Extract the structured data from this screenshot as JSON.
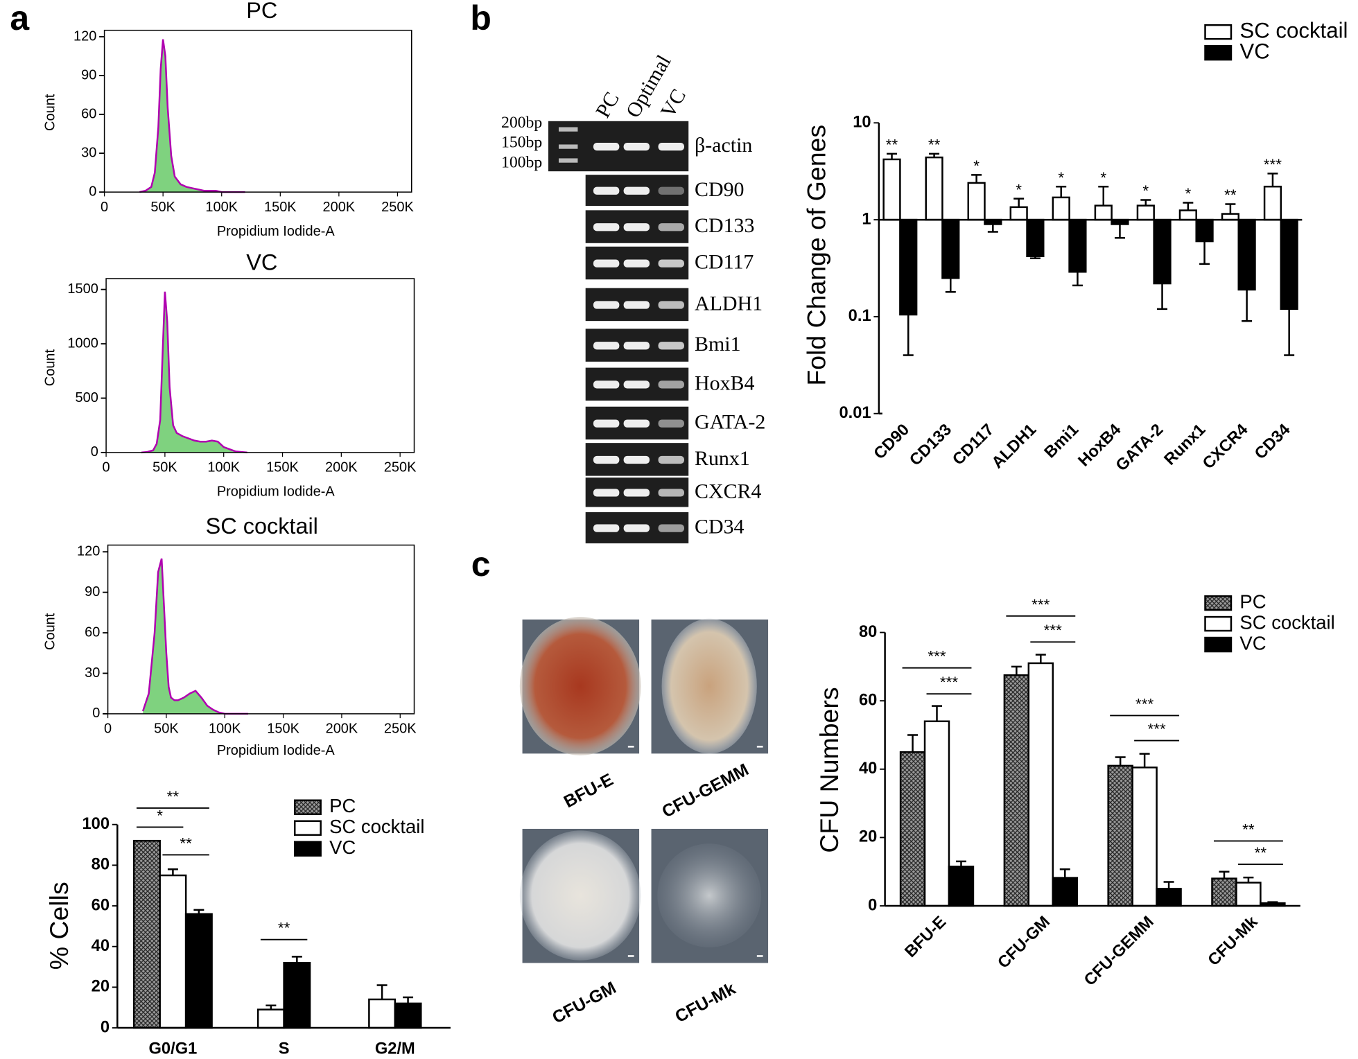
{
  "panel_labels": [
    "a",
    "b",
    "c"
  ],
  "gel": {
    "ladder": [
      "200bp",
      "150bp",
      "100bp"
    ],
    "lanes": [
      "PC",
      "Optimal",
      "VC"
    ],
    "genes": [
      "β-actin",
      "CD90",
      "CD133",
      "CD117",
      "ALDH1",
      "Bmi1",
      "HoxB4",
      "GATA-2",
      "Runx1",
      "CXCR4",
      "CD34"
    ]
  },
  "colonies": [
    "BFU-E",
    "CFU-GEMM",
    "CFU-GM",
    "CFU-Mk"
  ],
  "chart_data": [
    {
      "type": "area",
      "title": "PC",
      "xlabel": "Propidium Iodide-A",
      "ylabel": "Count",
      "color": "#7fd27f",
      "line_color": "#b000b0",
      "x": [
        30000,
        35000,
        40000,
        43000,
        46000,
        48000,
        50000,
        52000,
        54000,
        57000,
        60000,
        65000,
        70000,
        75000,
        80000,
        85000,
        90000,
        95000,
        100000,
        110000,
        120000
      ],
      "values": [
        0,
        1,
        4,
        15,
        50,
        95,
        118,
        105,
        65,
        28,
        12,
        6,
        4,
        3,
        2,
        1,
        1,
        1,
        0,
        0,
        0
      ],
      "xlim": [
        0,
        262000
      ],
      "xticks": [
        0,
        {
          "value": 50000,
          "label": "50K"
        },
        {
          "value": 100000,
          "label": "100K"
        },
        {
          "value": 150000,
          "label": "150K"
        },
        {
          "value": 200000,
          "label": "200K"
        },
        {
          "value": 250000,
          "label": "250K"
        }
      ],
      "ylim": [
        0,
        125
      ],
      "yticks": [
        0,
        30,
        60,
        90,
        120
      ]
    },
    {
      "type": "area",
      "title": "VC",
      "xlabel": "Propidium Iodide-A",
      "ylabel": "Count",
      "color": "#7fd27f",
      "line_color": "#b000b0",
      "x": [
        30000,
        35000,
        40000,
        43000,
        46000,
        48000,
        50000,
        52000,
        54000,
        57000,
        60000,
        65000,
        70000,
        75000,
        80000,
        85000,
        90000,
        95000,
        100000,
        110000,
        120000
      ],
      "values": [
        0,
        5,
        20,
        80,
        300,
        900,
        1480,
        1200,
        600,
        250,
        180,
        150,
        130,
        110,
        100,
        100,
        110,
        100,
        50,
        10,
        0
      ],
      "xlim": [
        0,
        262000
      ],
      "xticks": [
        0,
        {
          "value": 50000,
          "label": "50K"
        },
        {
          "value": 100000,
          "label": "100K"
        },
        {
          "value": 150000,
          "label": "150K"
        },
        {
          "value": 200000,
          "label": "200K"
        },
        {
          "value": 250000,
          "label": "250K"
        }
      ],
      "ylim": [
        0,
        1600
      ],
      "yticks": [
        0,
        500,
        1000,
        1500
      ]
    },
    {
      "type": "area",
      "title": "SC cocktail",
      "xlabel": "Propidium Iodide-A",
      "ylabel": "Count",
      "color": "#7fd27f",
      "line_color": "#b000b0",
      "x": [
        30000,
        35000,
        40000,
        43000,
        46000,
        48000,
        50000,
        52000,
        54000,
        57000,
        60000,
        65000,
        70000,
        75000,
        80000,
        85000,
        90000,
        95000,
        100000,
        110000,
        120000
      ],
      "values": [
        2,
        15,
        60,
        105,
        115,
        80,
        45,
        20,
        12,
        10,
        10,
        12,
        15,
        17,
        12,
        6,
        3,
        1,
        0,
        0,
        0
      ],
      "xlim": [
        0,
        262000
      ],
      "xticks": [
        0,
        {
          "value": 50000,
          "label": "50K"
        },
        {
          "value": 100000,
          "label": "100K"
        },
        {
          "value": 150000,
          "label": "150K"
        },
        {
          "value": 200000,
          "label": "200K"
        },
        {
          "value": 250000,
          "label": "250K"
        }
      ],
      "ylim": [
        0,
        125
      ],
      "yticks": [
        0,
        30,
        60,
        90,
        120
      ]
    },
    {
      "type": "bar",
      "ylabel": "% Cells",
      "categories": [
        "G0/G1",
        "S",
        "G2/M"
      ],
      "legend": "top-right",
      "series": [
        {
          "name": "PC",
          "color": "#777777",
          "hatch": true,
          "values": [
            92,
            null,
            null
          ],
          "errors": [
            0,
            null,
            null
          ]
        },
        {
          "name": "SC cocktail",
          "color": "#ffffff",
          "values": [
            75,
            9,
            14
          ],
          "errors": [
            3,
            2,
            7
          ]
        },
        {
          "name": "VC",
          "color": "#000000",
          "values": [
            56,
            32,
            12
          ],
          "errors": [
            2,
            3,
            3
          ]
        }
      ],
      "annotations": [
        "**",
        "*",
        "**",
        "**"
      ],
      "ylim": [
        0,
        100
      ],
      "yticks": [
        0,
        20,
        40,
        60,
        80,
        100
      ]
    },
    {
      "type": "bar",
      "ylabel": "Fold Change of Genes",
      "log_y": true,
      "baseline": 1,
      "legend": "top-right",
      "categories": [
        "CD90",
        "CD133",
        "CD117",
        "ALDH1",
        "Bmi1",
        "HoxB4",
        "GATA-2",
        "Runx1",
        "CXCR4",
        "CD34"
      ],
      "series": [
        {
          "name": "SC cocktail",
          "color": "#ffffff",
          "values": [
            4.2,
            4.4,
            2.4,
            1.35,
            1.7,
            1.4,
            1.4,
            1.25,
            1.15,
            2.2
          ],
          "errors": [
            0.6,
            0.4,
            0.5,
            0.3,
            0.5,
            0.8,
            0.2,
            0.25,
            0.3,
            0.8
          ]
        },
        {
          "name": "VC",
          "color": "#000000",
          "values": [
            0.105,
            0.25,
            0.9,
            0.42,
            0.29,
            0.9,
            0.22,
            0.6,
            0.19,
            0.12
          ],
          "errors": [
            0.065,
            0.07,
            0.15,
            0.02,
            0.08,
            0.25,
            0.1,
            0.25,
            0.1,
            0.08
          ]
        }
      ],
      "significance": [
        "**",
        "**",
        "*",
        "*",
        "*",
        "*",
        "*",
        "*",
        "**",
        "***"
      ],
      "ylim": [
        0.01,
        10
      ],
      "yticks": [
        0.01,
        0.1,
        1,
        10
      ]
    },
    {
      "type": "bar",
      "ylabel": "CFU Numbers",
      "legend": "top-right",
      "categories": [
        "BFU-E",
        "CFU-GM",
        "CFU-GEMM",
        "CFU-Mk"
      ],
      "series": [
        {
          "name": "PC",
          "color": "#777777",
          "hatch": true,
          "values": [
            45,
            67.5,
            41,
            8
          ],
          "errors": [
            5,
            2.5,
            2.5,
            2
          ]
        },
        {
          "name": "SC cocktail",
          "color": "#ffffff",
          "values": [
            54,
            71,
            40.5,
            6.8
          ],
          "errors": [
            4.5,
            2.5,
            4,
            1.5
          ]
        },
        {
          "name": "VC",
          "color": "#000000",
          "values": [
            11.5,
            8.2,
            5,
            0.8
          ],
          "errors": [
            1.5,
            2.5,
            2,
            0.3
          ]
        }
      ],
      "annotations": [
        "***",
        "***",
        "***",
        "***",
        "***",
        "***",
        "**",
        "**"
      ],
      "ylim": [
        0,
        80
      ],
      "yticks": [
        0,
        20,
        40,
        60,
        80
      ]
    }
  ]
}
